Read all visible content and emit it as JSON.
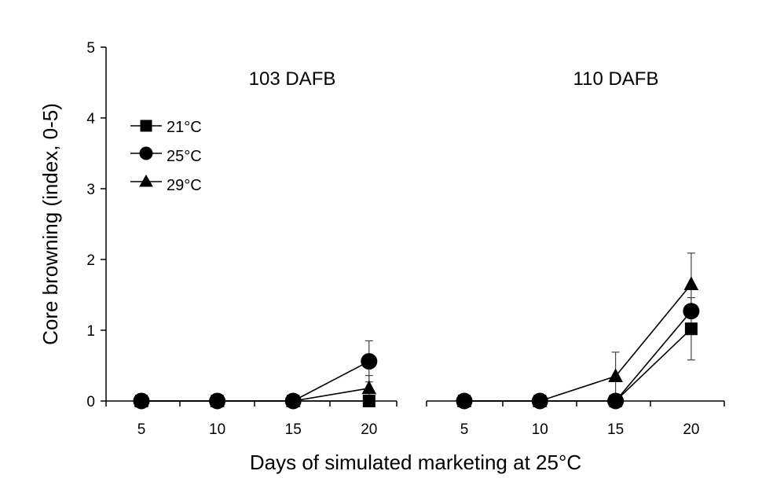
{
  "chart_data": {
    "type": "line",
    "ylabel": "Core browning (index, 0-5)",
    "xlabel": "Days of simulated marketing at 25°C",
    "ylim": [
      0,
      5
    ],
    "yticks": [
      "0",
      "1",
      "2",
      "3",
      "4",
      "5"
    ],
    "legend": {
      "placement": "top-left",
      "entries": [
        {
          "label": "21°C",
          "marker": "square"
        },
        {
          "label": "25°C",
          "marker": "circle"
        },
        {
          "label": "29°C",
          "marker": "triangle"
        }
      ]
    },
    "panels": [
      {
        "title": "103 DAFB",
        "x": [
          5,
          10,
          15,
          20
        ],
        "xticks": [
          "5",
          "10",
          "15",
          "20"
        ],
        "series": [
          {
            "name": "21°C",
            "marker": "square",
            "values": [
              0,
              0,
              0,
              0
            ],
            "errors": [
              0,
              0,
              0,
              0
            ]
          },
          {
            "name": "25°C",
            "marker": "circle",
            "values": [
              0,
              0,
              0,
              0.56
            ],
            "errors": [
              0,
              0,
              0,
              0.29
            ]
          },
          {
            "name": "29°C",
            "marker": "triangle",
            "values": [
              0,
              0,
              0,
              0.18
            ],
            "errors": [
              0,
              0,
              0,
              0.18
            ]
          }
        ]
      },
      {
        "title": "110 DAFB",
        "x": [
          5,
          10,
          15,
          20
        ],
        "xticks": [
          "5",
          "10",
          "15",
          "20"
        ],
        "series": [
          {
            "name": "21°C",
            "marker": "square",
            "values": [
              0,
              0,
              0,
              1.02
            ],
            "errors": [
              0,
              0,
              0,
              0.44
            ]
          },
          {
            "name": "25°C",
            "marker": "circle",
            "values": [
              0,
              0,
              0,
              1.27
            ],
            "errors": [
              0,
              0,
              0,
              0
            ]
          },
          {
            "name": "29°C",
            "marker": "triangle",
            "values": [
              0,
              0,
              0.35,
              1.65
            ],
            "errors": [
              0,
              0,
              0.34,
              0.44
            ]
          }
        ]
      }
    ]
  }
}
